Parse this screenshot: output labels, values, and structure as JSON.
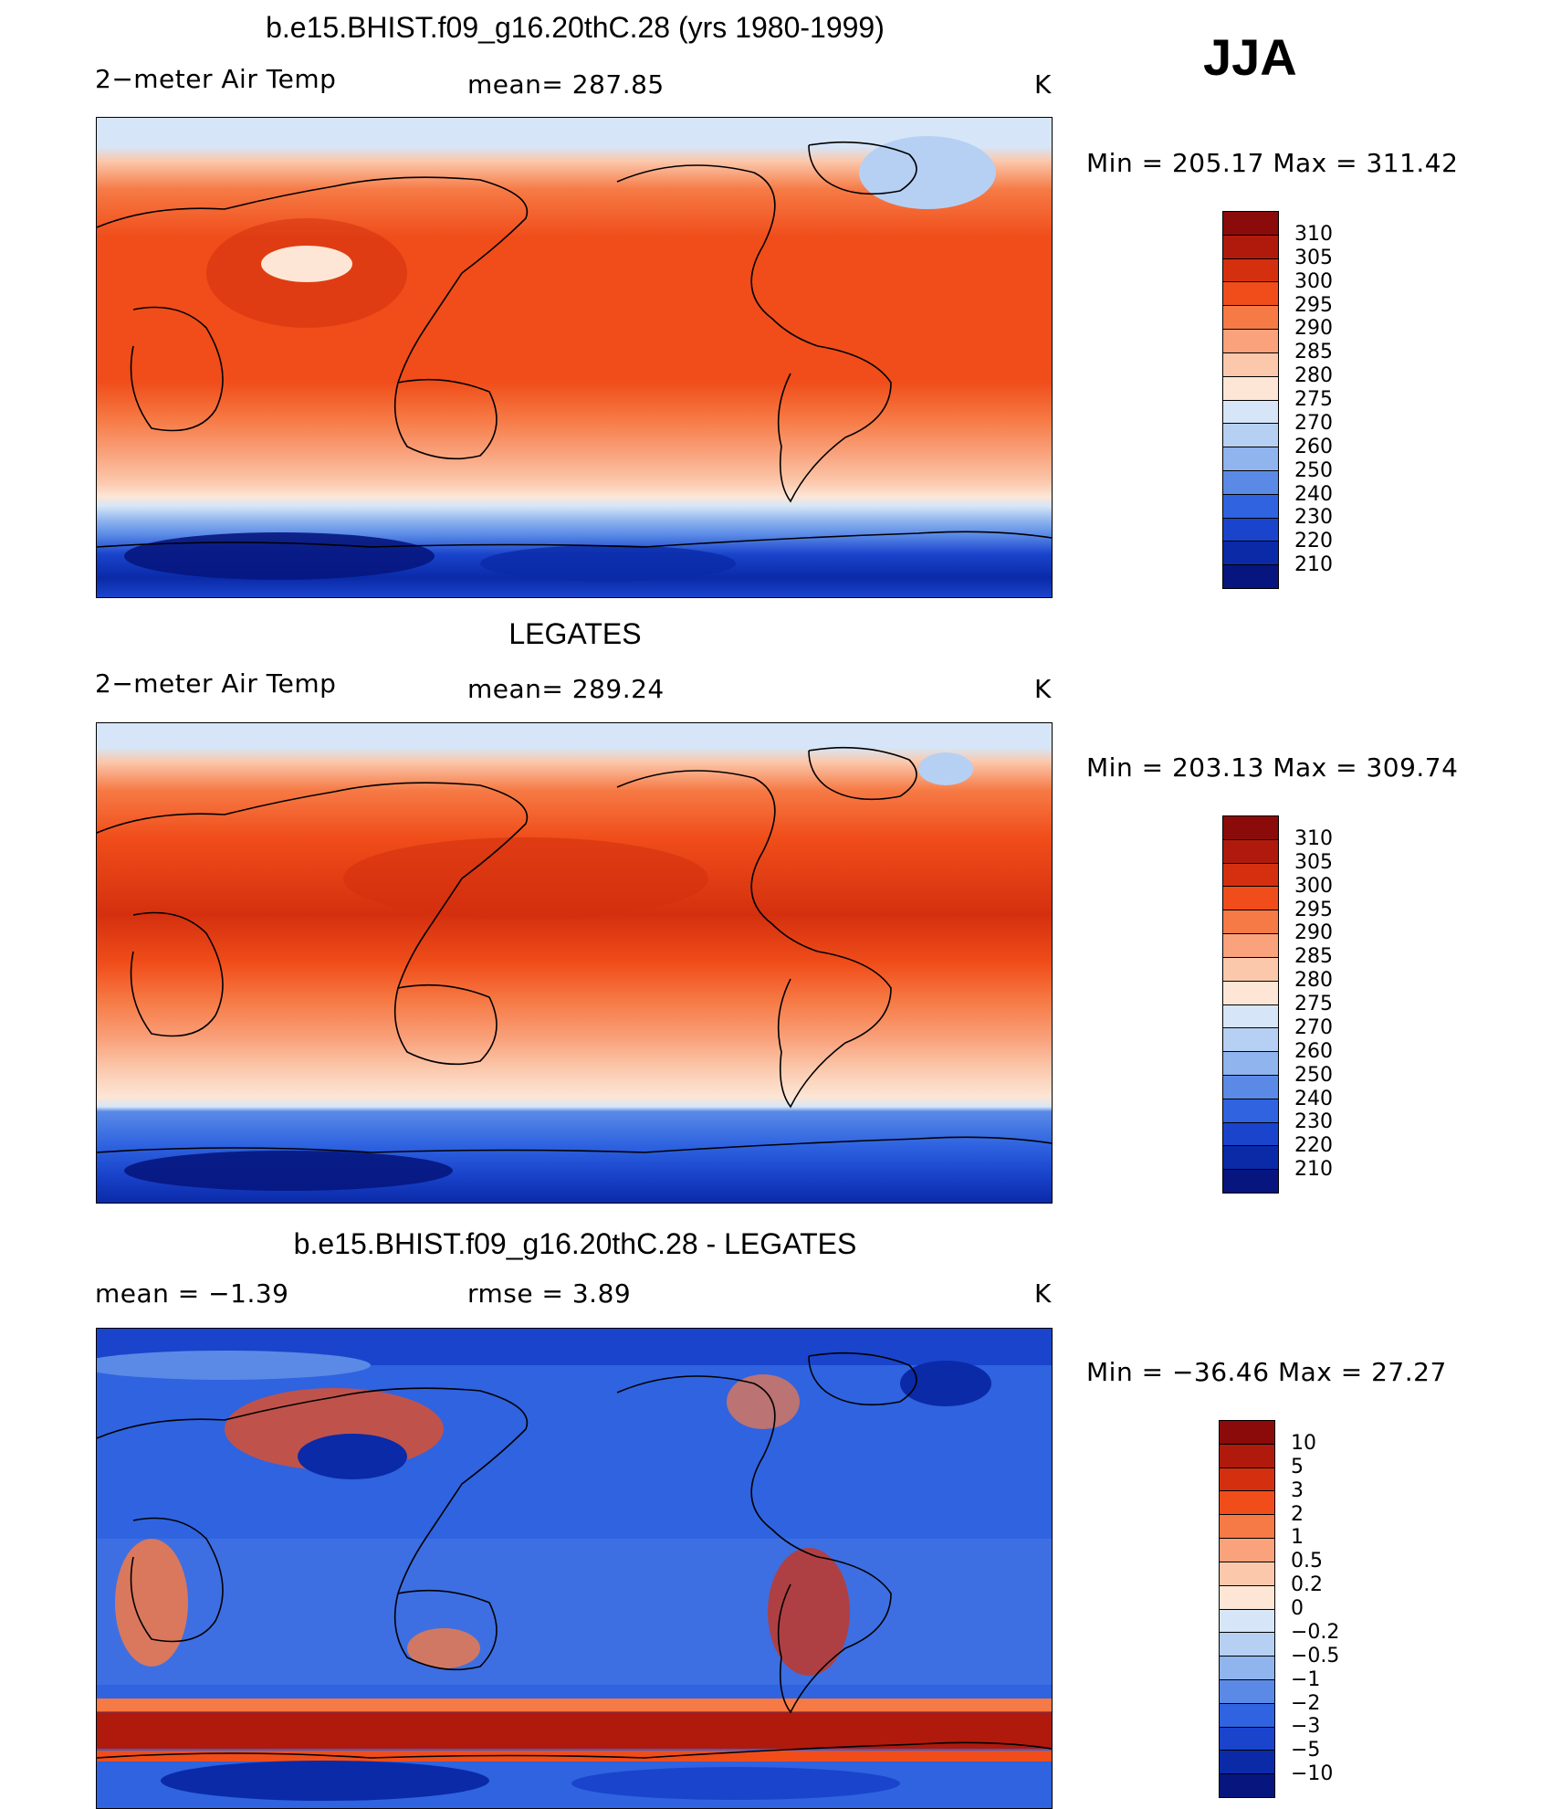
{
  "season": "JJA",
  "panels": [
    {
      "title": "b.e15.BHIST.f09_g16.20thC.28 (yrs 1980-1999)",
      "left_label": "2−meter Air Temp",
      "center_label": "mean=  287.85",
      "units": "K",
      "minmax": "Min  =  205.17  Max  =  311.42",
      "colorbar": {
        "labels": [
          "310",
          "305",
          "300",
          "295",
          "290",
          "285",
          "280",
          "275",
          "270",
          "260",
          "250",
          "240",
          "230",
          "220",
          "210"
        ],
        "colors": [
          "#8b0a0a",
          "#b01a0c",
          "#d4300f",
          "#f04d1a",
          "#f67a45",
          "#f9a27c",
          "#fbc8ac",
          "#fde6d6",
          "#d6e6f8",
          "#b6d0f4",
          "#8fb4ee",
          "#5a8ae6",
          "#2f63e0",
          "#1a44cc",
          "#0a2aa8",
          "#06167e"
        ]
      }
    },
    {
      "title": "LEGATES",
      "left_label": "2−meter Air Temp",
      "center_label": "mean=  289.24",
      "units": "K",
      "minmax": "Min  =  203.13  Max  =  309.74",
      "colorbar": {
        "labels": [
          "310",
          "305",
          "300",
          "295",
          "290",
          "285",
          "280",
          "275",
          "270",
          "260",
          "250",
          "240",
          "230",
          "220",
          "210"
        ],
        "colors": [
          "#8b0a0a",
          "#b01a0c",
          "#d4300f",
          "#f04d1a",
          "#f67a45",
          "#f9a27c",
          "#fbc8ac",
          "#fde6d6",
          "#d6e6f8",
          "#b6d0f4",
          "#8fb4ee",
          "#5a8ae6",
          "#2f63e0",
          "#1a44cc",
          "#0a2aa8",
          "#06167e"
        ]
      }
    },
    {
      "title": "b.e15.BHIST.f09_g16.20thC.28 - LEGATES",
      "left_label": "mean  =    −1.39",
      "center_label": "rmse  =     3.89",
      "units": "K",
      "minmax": "Min  =  −36.46  Max  =    27.27",
      "colorbar": {
        "labels": [
          "10",
          "5",
          "3",
          "2",
          "1",
          "0.5",
          "0.2",
          "0",
          "−0.2",
          "−0.5",
          "−1",
          "−2",
          "−3",
          "−5",
          "−10"
        ],
        "colors": [
          "#8b0a0a",
          "#b01a0c",
          "#d4300f",
          "#f04d1a",
          "#f67a45",
          "#f9a27c",
          "#fbc8ac",
          "#fde6d6",
          "#d6e6f8",
          "#b6d0f4",
          "#8fb4ee",
          "#5a8ae6",
          "#2f63e0",
          "#1a44cc",
          "#0a2aa8",
          "#06167e"
        ]
      }
    }
  ]
}
